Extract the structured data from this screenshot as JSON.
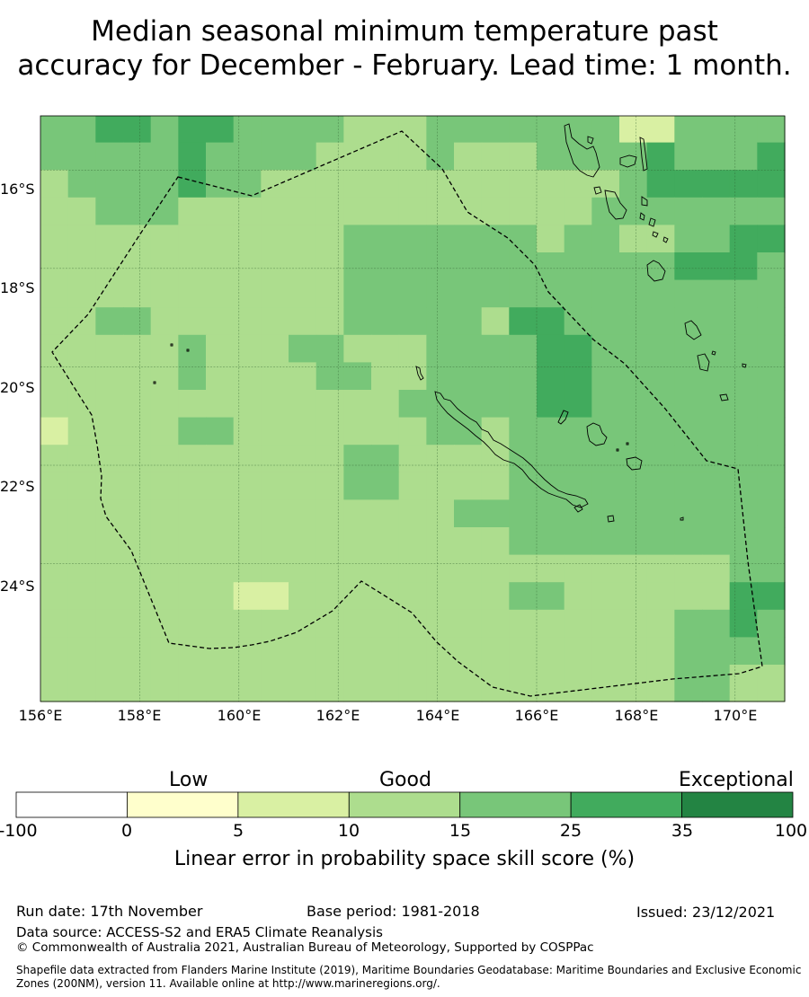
{
  "title": {
    "line1": "Median seasonal minimum temperature past",
    "line2": "accuracy for December - February. Lead time: 1 month."
  },
  "map": {
    "lon_range": [
      156.0,
      171.0
    ],
    "lat_range": [
      -26.8,
      -14.9
    ],
    "lat_labels": [
      "16°S",
      "18°S",
      "20°S",
      "22°S",
      "24°S"
    ],
    "lon_labels": [
      "156°E",
      "158°E",
      "160°E",
      "162°E",
      "164°E",
      "166°E",
      "168°E",
      "170°E"
    ],
    "grid_values": [
      [
        4,
        4,
        5,
        5,
        4,
        5,
        5,
        4,
        4,
        4,
        4,
        3,
        3,
        3,
        4,
        4,
        4,
        4,
        4,
        4,
        4,
        2,
        2,
        4,
        4,
        4,
        4
      ],
      [
        4,
        4,
        4,
        4,
        4,
        5,
        4,
        4,
        4,
        4,
        4,
        3,
        3,
        3,
        4,
        3,
        3,
        3,
        4,
        4,
        4,
        4,
        5,
        4,
        4,
        4,
        5
      ],
      [
        3,
        4,
        4,
        4,
        4,
        5,
        4,
        4,
        3,
        3,
        3,
        3,
        3,
        3,
        3,
        3,
        3,
        3,
        3,
        3,
        3,
        4,
        5,
        5,
        5,
        5,
        5
      ],
      [
        3,
        3,
        4,
        4,
        4,
        3,
        3,
        3,
        3,
        3,
        3,
        3,
        3,
        3,
        3,
        3,
        3,
        3,
        3,
        3,
        4,
        4,
        4,
        4,
        4,
        4,
        4
      ],
      [
        3,
        3,
        3,
        3,
        3,
        3,
        3,
        3,
        3,
        3,
        3,
        4,
        4,
        4,
        4,
        4,
        4,
        4,
        3,
        4,
        4,
        3,
        3,
        4,
        4,
        5,
        5
      ],
      [
        3,
        3,
        3,
        3,
        3,
        3,
        3,
        3,
        3,
        3,
        3,
        4,
        4,
        4,
        4,
        4,
        4,
        4,
        4,
        4,
        4,
        4,
        4,
        5,
        5,
        5,
        4
      ],
      [
        3,
        3,
        3,
        3,
        3,
        3,
        3,
        3,
        3,
        3,
        3,
        4,
        4,
        4,
        4,
        4,
        4,
        4,
        4,
        4,
        4,
        4,
        4,
        4,
        4,
        4,
        4
      ],
      [
        3,
        3,
        3,
        3,
        3,
        3,
        3,
        3,
        3,
        3,
        3,
        4,
        4,
        4,
        4,
        4,
        3,
        5,
        5,
        4,
        4,
        4,
        4,
        4,
        4,
        4,
        4
      ],
      [
        3,
        3,
        3,
        3,
        3,
        4,
        3,
        3,
        3,
        3,
        3,
        3,
        3,
        3,
        4,
        4,
        4,
        4,
        5,
        5,
        4,
        4,
        4,
        4,
        4,
        4,
        4
      ],
      [
        3,
        3,
        3,
        3,
        3,
        4,
        3,
        3,
        3,
        3,
        3,
        3,
        3,
        3,
        4,
        4,
        4,
        4,
        5,
        5,
        4,
        4,
        4,
        4,
        4,
        4,
        4
      ],
      [
        3,
        3,
        3,
        3,
        3,
        3,
        3,
        3,
        3,
        3,
        3,
        3,
        3,
        3,
        4,
        4,
        4,
        4,
        5,
        5,
        4,
        4,
        4,
        4,
        4,
        4,
        4
      ],
      [
        2,
        3,
        3,
        3,
        3,
        3,
        3,
        3,
        3,
        3,
        3,
        3,
        3,
        3,
        4,
        4,
        3,
        4,
        4,
        4,
        4,
        4,
        4,
        4,
        4,
        4,
        4
      ],
      [
        3,
        3,
        3,
        3,
        3,
        3,
        3,
        3,
        3,
        3,
        3,
        3,
        3,
        3,
        3,
        3,
        3,
        4,
        4,
        4,
        4,
        4,
        4,
        4,
        4,
        4,
        4
      ],
      [
        3,
        3,
        3,
        3,
        3,
        3,
        3,
        3,
        3,
        3,
        3,
        3,
        3,
        3,
        3,
        3,
        3,
        4,
        4,
        4,
        4,
        4,
        4,
        4,
        4,
        4,
        4
      ],
      [
        3,
        3,
        3,
        3,
        3,
        3,
        3,
        3,
        3,
        3,
        3,
        3,
        3,
        3,
        3,
        3,
        3,
        4,
        4,
        4,
        4,
        4,
        4,
        4,
        4,
        4,
        4
      ],
      [
        3,
        3,
        3,
        3,
        3,
        3,
        3,
        3,
        3,
        3,
        3,
        3,
        3,
        3,
        3,
        3,
        3,
        4,
        4,
        4,
        4,
        4,
        4,
        4,
        4,
        4,
        4
      ],
      [
        3,
        3,
        3,
        3,
        3,
        3,
        3,
        3,
        3,
        3,
        3,
        3,
        3,
        3,
        3,
        3,
        3,
        3,
        3,
        3,
        3,
        3,
        3,
        3,
        3,
        4,
        4
      ],
      [
        3,
        3,
        3,
        3,
        3,
        3,
        3,
        3,
        3,
        3,
        3,
        3,
        3,
        3,
        3,
        3,
        3,
        3,
        3,
        3,
        3,
        3,
        3,
        3,
        3,
        4,
        4
      ],
      [
        3,
        3,
        3,
        3,
        3,
        3,
        3,
        3,
        3,
        3,
        3,
        3,
        3,
        3,
        3,
        3,
        3,
        3,
        3,
        3,
        3,
        3,
        3,
        3,
        3,
        4,
        4
      ],
      [
        3,
        3,
        3,
        3,
        3,
        3,
        3,
        3,
        3,
        3,
        3,
        3,
        3,
        3,
        3,
        3,
        3,
        3,
        3,
        3,
        3,
        3,
        3,
        3,
        3,
        4,
        4
      ],
      [
        3,
        3,
        3,
        3,
        3,
        3,
        3,
        3,
        3,
        3,
        3,
        3,
        3,
        3,
        3,
        3,
        3,
        3,
        3,
        3,
        3,
        3,
        3,
        3,
        3,
        3,
        3
      ],
      [
        3,
        3,
        3,
        3,
        3,
        3,
        3,
        3,
        3,
        3,
        3,
        3,
        3,
        3,
        3,
        3,
        3,
        3,
        3,
        3,
        3,
        3,
        3,
        3,
        3,
        3,
        3
      ]
    ],
    "grid_overrides": [
      {
        "r": 0,
        "c": 2,
        "v": 5
      },
      {
        "r": 0,
        "c": 3,
        "v": 5
      },
      {
        "r": 0,
        "c": 21,
        "v": 2
      },
      {
        "r": 0,
        "c": 22,
        "v": 2
      },
      {
        "r": 1,
        "c": 10,
        "v": 3
      },
      {
        "r": 2,
        "c": 8,
        "v": 3
      },
      {
        "r": 5,
        "c": 0,
        "v": 3
      },
      {
        "r": 7,
        "c": 2,
        "v": 4
      },
      {
        "r": 7,
        "c": 3,
        "v": 4
      },
      {
        "r": 8,
        "c": 9,
        "v": 4
      },
      {
        "r": 8,
        "c": 10,
        "v": 4
      },
      {
        "r": 9,
        "c": 10,
        "v": 4
      },
      {
        "r": 9,
        "c": 11,
        "v": 4
      },
      {
        "r": 10,
        "c": 13,
        "v": 4
      },
      {
        "r": 11,
        "c": 0,
        "v": 2
      },
      {
        "r": 11,
        "c": 5,
        "v": 4
      },
      {
        "r": 11,
        "c": 6,
        "v": 4
      },
      {
        "r": 12,
        "c": 11,
        "v": 4
      },
      {
        "r": 12,
        "c": 12,
        "v": 4
      },
      {
        "r": 13,
        "c": 11,
        "v": 4
      },
      {
        "r": 13,
        "c": 12,
        "v": 4
      },
      {
        "r": 14,
        "c": 15,
        "v": 4
      },
      {
        "r": 14,
        "c": 16,
        "v": 4
      },
      {
        "r": 14,
        "c": 17,
        "v": 4
      },
      {
        "r": 14,
        "c": 18,
        "v": 4
      },
      {
        "r": 15,
        "c": 17,
        "v": 4
      },
      {
        "r": 16,
        "c": 19,
        "v": 3
      },
      {
        "r": 16,
        "c": 20,
        "v": 3
      },
      {
        "r": 17,
        "c": 7,
        "v": 2
      },
      {
        "r": 17,
        "c": 8,
        "v": 2
      },
      {
        "r": 17,
        "c": 17,
        "v": 4
      },
      {
        "r": 17,
        "c": 18,
        "v": 4
      },
      {
        "r": 17,
        "c": 25,
        "v": 5
      },
      {
        "r": 17,
        "c": 26,
        "v": 5
      },
      {
        "r": 18,
        "c": 25,
        "v": 5
      },
      {
        "r": 18,
        "c": 23,
        "v": 4
      },
      {
        "r": 18,
        "c": 24,
        "v": 4
      },
      {
        "r": 19,
        "c": 23,
        "v": 4
      },
      {
        "r": 19,
        "c": 24,
        "v": 4
      },
      {
        "r": 20,
        "c": 23,
        "v": 4
      },
      {
        "r": 20,
        "c": 24,
        "v": 4
      },
      {
        "r": 21,
        "c": 23,
        "v": 4
      },
      {
        "r": 21,
        "c": 24,
        "v": 4
      }
    ],
    "colors": [
      "#ffffff",
      "#ffffcc",
      "#d9f0a3",
      "#addd8e",
      "#78c679",
      "#41ab5d",
      "#238443"
    ]
  },
  "colorbar": {
    "categories": [
      "Low",
      "Good",
      "Exceptional"
    ],
    "ticks": [
      "-100",
      "0",
      "5",
      "10",
      "15",
      "25",
      "35",
      "100"
    ],
    "title": "Linear error in probability space skill score (%)"
  },
  "footer": {
    "run_date": "Run date: 17th November",
    "base_period": "Base period: 1981-2018",
    "issued": "Issued: 23/12/2021",
    "data_source": "Data source: ACCESS-S2 and ERA5 Climate Reanalysis",
    "copyright": "© Commonwealth of Australia 2021, Australian Bureau of Meteorology, Supported by COSPPac",
    "shapefile": "Shapefile data extracted from Flanders Marine Institute (2019), Maritime Boundaries Geodatabase: Maritime Boundaries and Exclusive Economic Zones (200NM), version 11. Available online at http://www.marineregions.org/."
  }
}
